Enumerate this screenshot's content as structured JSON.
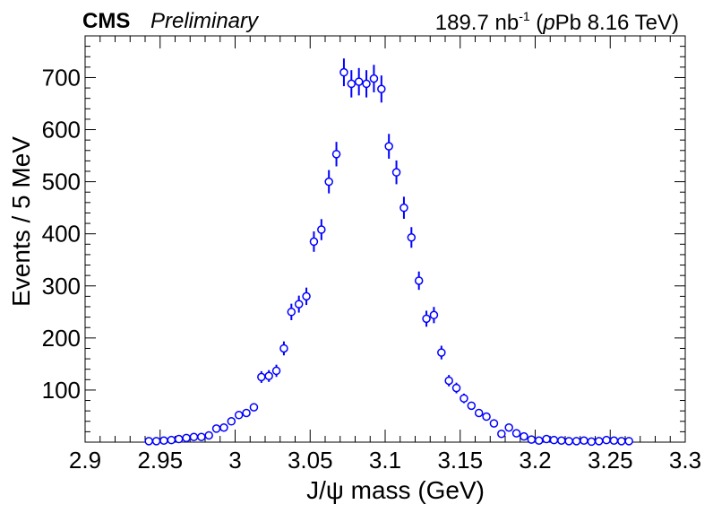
{
  "header": {
    "experiment": "CMS",
    "status": "Preliminary",
    "lumi_value": "189.7 nb",
    "lumi_exp": "-1",
    "lumi_open": " (",
    "lumi_p": "p",
    "lumi_rest": "Pb 8.16 TeV)"
  },
  "chart_data": {
    "type": "scatter",
    "xlabel": "J/ψ mass (GeV)",
    "ylabel": "Events / 5 MeV",
    "xlim": [
      2.9,
      3.3
    ],
    "ylim": [
      0,
      780
    ],
    "xticks": [
      "2.9",
      "2.95",
      "3",
      "3.05",
      "3.1",
      "3.15",
      "3.2",
      "3.25",
      "3.3"
    ],
    "yticks": [
      "100",
      "200",
      "300",
      "400",
      "500",
      "600",
      "700"
    ],
    "marker": "open-circle",
    "color": "#0000ff",
    "grid": false,
    "series": [
      {
        "x": [
          2.9425,
          2.9475,
          2.9525,
          2.9575,
          2.9625,
          2.9675,
          2.9725,
          2.9775,
          2.9825,
          2.9875,
          2.9925,
          2.9975,
          3.0025,
          3.0075,
          3.0125,
          3.0175,
          3.0225,
          3.0275,
          3.0325,
          3.0375,
          3.0425,
          3.0475,
          3.0525,
          3.0575,
          3.0625,
          3.0675,
          3.0725,
          3.0775,
          3.0825,
          3.0875,
          3.0925,
          3.0975,
          3.1025,
          3.1075,
          3.1125,
          3.1175,
          3.1225,
          3.1275,
          3.1325,
          3.1375,
          3.1425,
          3.1475,
          3.1525,
          3.1575,
          3.1625,
          3.1675,
          3.1725,
          3.1775,
          3.1825,
          3.1875,
          3.1925,
          3.1975,
          3.2025,
          3.2075,
          3.2125,
          3.2175,
          3.2225,
          3.2275,
          3.2325,
          3.2375,
          3.2425,
          3.2475,
          3.2525,
          3.2575,
          3.2625
        ],
        "y": [
          2,
          2,
          3,
          4,
          6,
          8,
          10,
          10,
          13,
          26,
          28,
          40,
          52,
          56,
          67,
          125,
          127,
          137,
          180,
          250,
          265,
          280,
          385,
          408,
          500,
          553,
          710,
          688,
          692,
          688,
          698,
          678,
          568,
          518,
          450,
          393,
          310,
          237,
          244,
          172,
          118,
          104,
          84,
          70,
          56,
          49,
          36,
          16,
          28,
          17,
          11,
          5,
          3,
          6,
          4,
          3,
          2,
          2,
          3,
          1,
          2,
          4,
          3,
          2,
          2
        ],
        "yerr": [
          1.4,
          1.4,
          1.7,
          2,
          2.4,
          2.8,
          3.2,
          3.2,
          3.6,
          5.1,
          5.3,
          6.3,
          7.2,
          7.5,
          8.2,
          11.2,
          11.3,
          11.7,
          13.4,
          15.8,
          16.3,
          16.7,
          19.6,
          20.2,
          22.4,
          23.5,
          26.6,
          26.2,
          26.3,
          26.2,
          26.4,
          26,
          23.8,
          22.8,
          21.2,
          19.8,
          17.6,
          15.4,
          15.6,
          13.1,
          10.9,
          10.2,
          9.2,
          8.4,
          7.5,
          7,
          6,
          4,
          5.3,
          4.1,
          3.3,
          2.2,
          1.7,
          2.4,
          2,
          1.7,
          1.4,
          1.4,
          1.7,
          1,
          1.4,
          2,
          1.7,
          1.4,
          1.4
        ]
      }
    ]
  }
}
